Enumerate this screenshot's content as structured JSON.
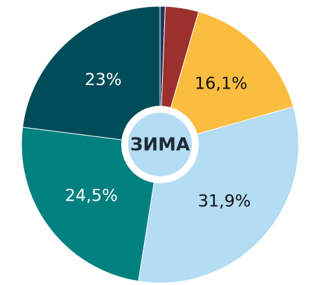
{
  "chart_data": {
    "type": "pie",
    "center_label": "ЗИМА",
    "values": [
      0.6,
      3.9,
      16.1,
      31.9,
      24.5,
      23
    ],
    "value_labels": [
      null,
      null,
      "16,1%",
      "31,9%",
      "24,5%",
      "23%"
    ],
    "colors": [
      "#1b3a5e",
      "#9c302c",
      "#fbbd40",
      "#b4dcf3",
      "#00807f",
      "#004c58"
    ],
    "label_colors": [
      "#fff",
      "#fff",
      "#111",
      "#111",
      "#fff",
      "#fff"
    ]
  }
}
